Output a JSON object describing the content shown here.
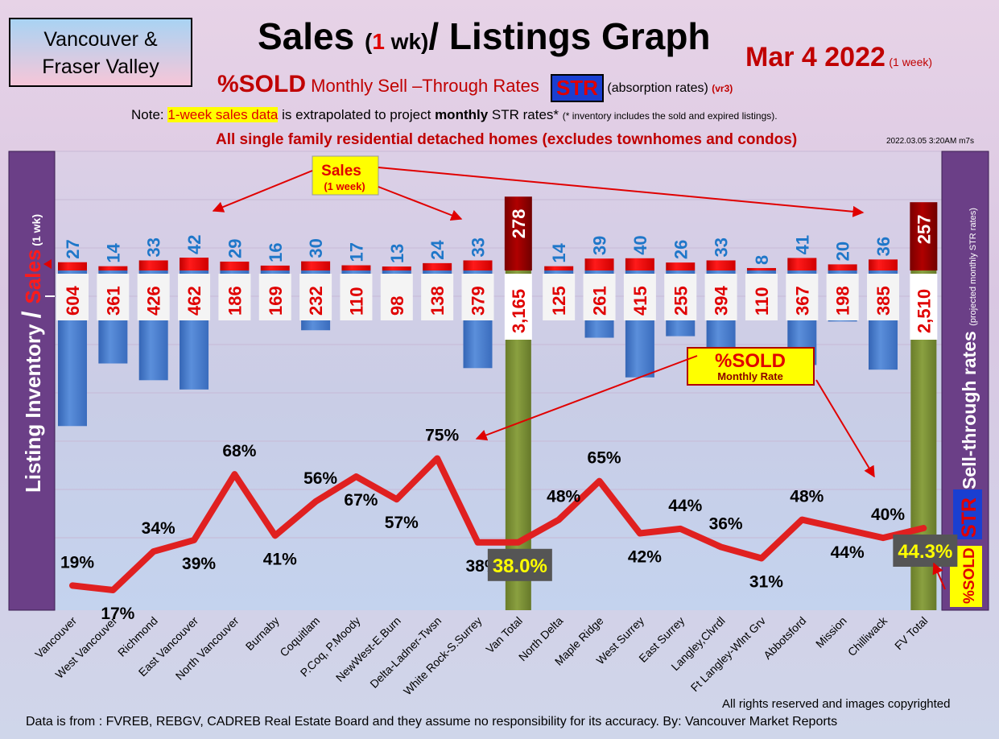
{
  "region_label_line1": "Vancouver &",
  "region_label_line2": "Fraser Valley",
  "title_part1": "Sales ",
  "title_part2": "(",
  "title_part3": "1",
  "title_part4": " wk)",
  "title_part5": "/ Listings Graph",
  "date_label": "Mar  4  2022",
  "date_sub": "(1 week)",
  "subtitle_big": "%SOLD",
  "subtitle_text": " Monthly Sell –Through Rates ",
  "subtitle_badge": "STR",
  "subtitle_note": "(absorption rates)",
  "subtitle_version": "(vr3)",
  "note_prefix": "Note: ",
  "note_highlight": "1-week sales data",
  "note_mid": " is extrapolated to project ",
  "note_bold": "monthly",
  "note_suffix": " STR rates* ",
  "note_tiny": "(* inventory includes the sold and expired listings).",
  "scope_label": "All single family residential detached homes (excludes townhomes and condos)",
  "timestamp": "2022.03.05 3:20AM m7s",
  "copyright": "All rights reserved and  images copyrighted",
  "source": "Data is from : FVREB, REBGV, CADREB Real Estate Board and they assume no responsibility for its accuracy. By: Vancouver Market Reports",
  "left_axis_label_a": "Listing Inventory ",
  "left_axis_label_b": "/ ",
  "left_axis_label_c": "Sales",
  "left_axis_label_d": " (1 wk)",
  "right_axis_label_a": "Sell-through rates ",
  "right_axis_label_b": "(projected monthly STR rates)",
  "right_axis_badge": "STR",
  "right_axis_sold": "%SOLD",
  "callout_sales_line1": "Sales",
  "callout_sales_line2": "(1 week)",
  "callout_sold_line1": "%SOLD",
  "callout_sold_line2": "Monthly Rate",
  "colors": {
    "sales_bar": "#ff0000",
    "total_bar": "#8b0000",
    "inventory_bar": "#4a7fd0",
    "total_inventory_bar": "#7a8e35",
    "str_line": "#e02020",
    "sales_label": "#1f77c9",
    "inventory_label": "#e00000"
  },
  "chart_data": {
    "type": "bar",
    "categories": [
      "Vancouver",
      "West Vancouver",
      "Richmond",
      "East Vancouver",
      "North Vancouver",
      "Burnaby",
      "Coquitlam",
      "P.Coq, P.Moody",
      "NewWest-E.Burn",
      "Delta-Ladner-Twsn",
      "White Rock-S.Surrey",
      "Van Total",
      "North Delta",
      "Maple Ridge",
      "West Surrey",
      "East Surrey",
      "Langley,Clvrdl",
      "Ft Langley-Wlnt Grv",
      "Abbotsford",
      "Mission",
      "Chilliwack",
      "FV Total"
    ],
    "series": [
      {
        "name": "Sales",
        "values": [
          27,
          14,
          33,
          42,
          29,
          16,
          30,
          17,
          13,
          24,
          33,
          278,
          14,
          39,
          40,
          26,
          33,
          8,
          41,
          20,
          36,
          257
        ]
      },
      {
        "name": "Listing Inventory",
        "values": [
          604,
          361,
          426,
          462,
          186,
          169,
          232,
          110,
          98,
          138,
          379,
          3165,
          125,
          261,
          415,
          255,
          394,
          110,
          367,
          198,
          385,
          2510
        ]
      },
      {
        "name": "%SOLD",
        "values": [
          19,
          17,
          34,
          39,
          68,
          41,
          56,
          67,
          57,
          75,
          38,
          38.0,
          48,
          65,
          42,
          44,
          36,
          31,
          48,
          44,
          40,
          44.3
        ]
      }
    ],
    "sales_labels": [
      "27",
      "14",
      "33",
      "42",
      "29",
      "16",
      "30",
      "17",
      "13",
      "24",
      "33",
      "278",
      "14",
      "39",
      "40",
      "26",
      "33",
      "8",
      "41",
      "20",
      "36",
      "257"
    ],
    "inventory_labels": [
      "604",
      "361",
      "426",
      "462",
      "186",
      "169",
      "232",
      "110",
      "98",
      "138",
      "379",
      "3,165",
      "125",
      "261",
      "415",
      "255",
      "394",
      "110",
      "367",
      "198",
      "385",
      "2,510"
    ],
    "str_labels": [
      "19%",
      "17%",
      "34%",
      "39%",
      "68%",
      "41%",
      "56%",
      "67%",
      "57%",
      "75%",
      "38%",
      "38.0%",
      "48%",
      "65%",
      "42%",
      "44%",
      "36%",
      "31%",
      "48%",
      "44%",
      "40%",
      "44.3%"
    ],
    "totals_index": [
      11,
      21
    ]
  }
}
